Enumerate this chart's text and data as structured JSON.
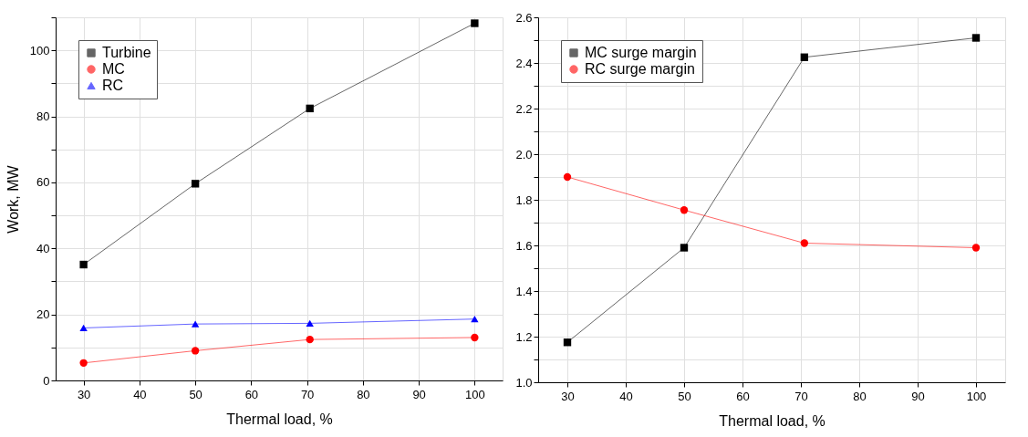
{
  "chart_data": [
    {
      "type": "line",
      "xlabel": "Thermal load, %",
      "ylabel": "Work, MW",
      "x": [
        30,
        50,
        70.5,
        100
      ],
      "xlim": [
        25,
        105
      ],
      "xticks": [
        30,
        40,
        50,
        60,
        70,
        80,
        90,
        100
      ],
      "ylim": [
        0,
        110
      ],
      "yticks": [
        0,
        {
          "value": 10,
          "label": null
        },
        20,
        {
          "value": 30,
          "label": null
        },
        40,
        {
          "value": 50,
          "label": null
        },
        60,
        {
          "value": 70,
          "label": null
        },
        80,
        {
          "value": 90,
          "label": null
        },
        100,
        {
          "value": 110,
          "label": null
        }
      ],
      "grid": true,
      "legend": "top left",
      "line_style": "solid",
      "series": [
        {
          "name": "Turbine",
          "color": "#000000",
          "marker": "square",
          "values": [
            35.1,
            59.6,
            82.4,
            108.2
          ]
        },
        {
          "name": "MC",
          "color": "#ff0000",
          "marker": "circle",
          "values": [
            5.3,
            9.0,
            12.4,
            13.0
          ]
        },
        {
          "name": "RC",
          "color": "#0000ff",
          "marker": "triangle",
          "values": [
            15.9,
            17.1,
            17.3,
            18.6
          ]
        }
      ]
    },
    {
      "type": "line",
      "xlabel": "Thermal load, %",
      "x": [
        30,
        50,
        70.6,
        100
      ],
      "xlim": [
        25,
        105
      ],
      "xticks": [
        30,
        40,
        50,
        60,
        70,
        80,
        90,
        100
      ],
      "ylim": [
        1.0,
        2.6
      ],
      "yticks": [
        {
          "value": 1.0,
          "label": "1.0"
        },
        {
          "value": 1.1,
          "label": null
        },
        1.2,
        {
          "value": 1.3,
          "label": null
        },
        1.4,
        {
          "value": 1.5,
          "label": null
        },
        1.6,
        {
          "value": 1.7,
          "label": null
        },
        1.8,
        {
          "value": 1.9,
          "label": null
        },
        {
          "value": 2.0,
          "label": "2.0"
        },
        {
          "value": 2.1,
          "label": null
        },
        2.2,
        {
          "value": 2.3,
          "label": null
        },
        2.4,
        {
          "value": 2.5,
          "label": null
        },
        2.6
      ],
      "grid": true,
      "legend": "top left",
      "line_style": "solid",
      "series": [
        {
          "name": "MC surge margin",
          "color": "#000000",
          "marker": "square",
          "values": [
            1.175,
            1.59,
            2.425,
            2.51
          ]
        },
        {
          "name": "RC surge margin",
          "color": "#ff0000",
          "marker": "circle",
          "values": [
            1.9,
            1.755,
            1.61,
            1.59
          ]
        }
      ]
    }
  ]
}
